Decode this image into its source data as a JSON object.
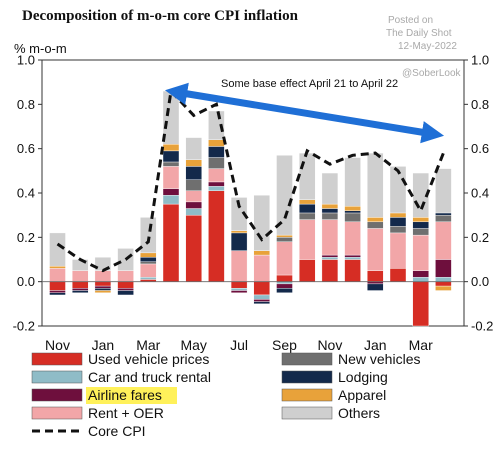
{
  "chart_data": {
    "type": "bar",
    "stacked": true,
    "title": "Decomposition of m-o-m core CPI inflation",
    "ylabel": "% m-o-m",
    "ylim": [
      -0.2,
      1.0
    ],
    "yticks": [
      "1.0",
      "0.8",
      "0.6",
      "0.4",
      "0.2",
      "0.0",
      "-0.2"
    ],
    "xtick_labels": [
      "Nov",
      "Jan",
      "Mar",
      "May",
      "Jul",
      "Sep",
      "Nov",
      "Jan",
      "Mar"
    ],
    "categories": [
      "Nov-20",
      "Dec-20",
      "Jan-21",
      "Feb-21",
      "Mar-21",
      "Apr-21",
      "May-21",
      "Jun-21",
      "Jul-21",
      "Aug-21",
      "Sep-21",
      "Oct-21",
      "Nov-21",
      "Dec-21",
      "Jan-22",
      "Feb-22",
      "Mar-22",
      "Apr-22"
    ],
    "series": [
      {
        "name": "Used vehicle prices",
        "color": "#d62d24",
        "values": [
          -0.04,
          -0.03,
          -0.02,
          -0.03,
          0.01,
          0.35,
          0.3,
          0.41,
          -0.03,
          -0.06,
          0.03,
          0.1,
          0.1,
          0.1,
          0.05,
          0.06,
          -0.2,
          -0.02
        ]
      },
      {
        "name": "Car and truck rental",
        "color": "#8fbcc7",
        "values": [
          0,
          0,
          0,
          0,
          0.01,
          0.04,
          0.03,
          0.02,
          -0.01,
          -0.02,
          -0.01,
          0,
          0.01,
          0.01,
          0,
          0,
          0.02,
          0.02
        ]
      },
      {
        "name": "Airline fares",
        "color": "#6e0f3d",
        "values": [
          -0.01,
          -0.01,
          -0.01,
          -0.01,
          0,
          0.03,
          0.03,
          0.02,
          -0.01,
          -0.01,
          -0.02,
          0,
          0.01,
          0.01,
          -0.01,
          0,
          0.03,
          0.08
        ]
      },
      {
        "name": "Rent + OER",
        "color": "#f2a6a8",
        "values": [
          0.06,
          0.05,
          0.05,
          0.05,
          0.06,
          0.1,
          0.05,
          0.06,
          0.14,
          0.12,
          0.15,
          0.18,
          0.16,
          0.15,
          0.19,
          0.16,
          0.16,
          0.17
        ]
      },
      {
        "name": "New vehicles",
        "color": "#6f6f6f",
        "values": [
          0,
          0,
          0,
          0,
          0.01,
          0.02,
          0.05,
          0.05,
          0,
          0,
          0.02,
          0.03,
          0.03,
          0.04,
          0.03,
          0.03,
          0.03,
          0.03
        ]
      },
      {
        "name": "Lodging",
        "color": "#13294b",
        "values": [
          -0.01,
          -0.01,
          -0.01,
          -0.02,
          0.02,
          0.05,
          0.06,
          0.05,
          0.08,
          -0.01,
          -0.02,
          0.04,
          0.02,
          0.01,
          -0.03,
          0.04,
          0.03,
          0.01
        ]
      },
      {
        "name": "Apparel",
        "color": "#e8a23a",
        "values": [
          0.01,
          0,
          -0.01,
          0,
          0.02,
          0.03,
          0.03,
          0.03,
          0.01,
          0.02,
          0.01,
          0.02,
          0.02,
          0.02,
          0.02,
          0.02,
          0.02,
          -0.02
        ]
      },
      {
        "name": "Others",
        "color": "#cfcfcf",
        "values": [
          0.15,
          0.05,
          0.06,
          0.1,
          0.16,
          0.24,
          0.1,
          0.13,
          0.15,
          0.25,
          0.36,
          0.21,
          0.14,
          0.22,
          0.29,
          0.21,
          0.2,
          0.2
        ]
      }
    ],
    "core_cpi": {
      "name": "Core CPI",
      "values": [
        0.17,
        0.1,
        0.05,
        0.1,
        0.18,
        0.86,
        0.75,
        0.8,
        0.34,
        0.19,
        0.28,
        0.59,
        0.53,
        0.57,
        0.58,
        0.5,
        0.32,
        0.58
      ]
    },
    "annotation": {
      "text": "Some base effect April 21 to April 22",
      "from": "Apr-21",
      "to": "Apr-22"
    },
    "legend_position": "bottom",
    "grid": false
  },
  "watermark": {
    "line1": "Posted on",
    "line2": "The Daily Shot",
    "line3": "12-May-2022",
    "handle": "@SoberLook"
  }
}
